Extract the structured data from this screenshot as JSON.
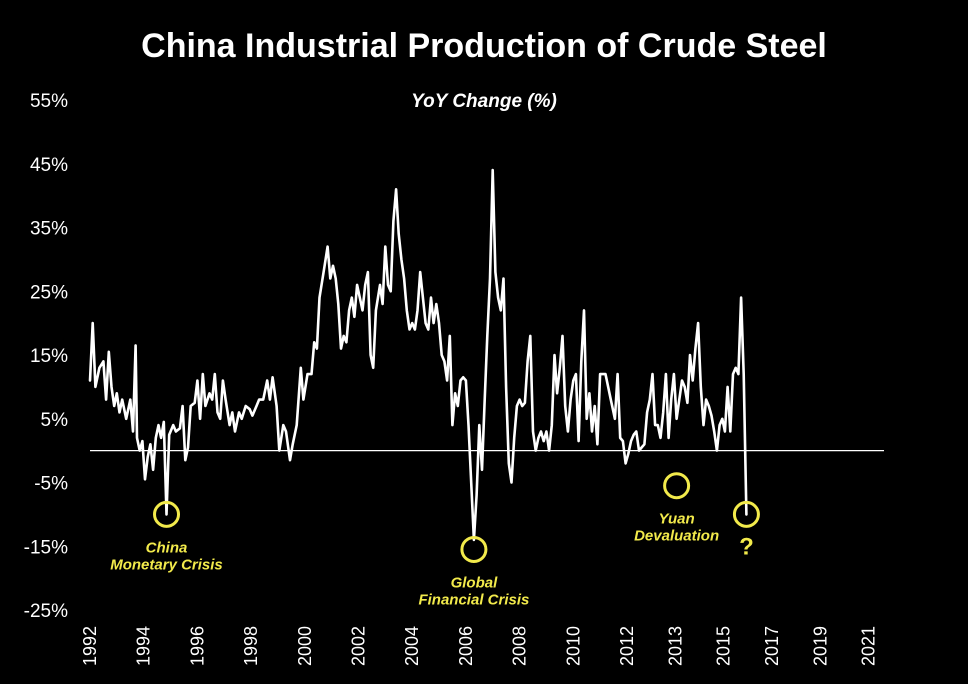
{
  "chart_data": {
    "type": "line",
    "title": "China Industrial Production of Crude Steel",
    "subtitle": "YoY Change (%)",
    "ylim": [
      -25,
      55
    ],
    "y_ticks": [
      "55%",
      "45%",
      "35%",
      "25%",
      "15%",
      "5%",
      "-5%",
      "-15%",
      "-25%"
    ],
    "y_tick_values": [
      55,
      45,
      35,
      25,
      15,
      5,
      -5,
      -15,
      -25
    ],
    "x_ticks": [
      "1992",
      "1994",
      "1996",
      "1998",
      "2000",
      "2002",
      "2004",
      "2006",
      "2008",
      "2010",
      "2012",
      "2013",
      "2015",
      "2017",
      "2019",
      "2021"
    ],
    "x_tick_values": [
      1992.0,
      1994.0,
      1996.0,
      1998.0,
      2000.0,
      2002.0,
      2004.0,
      2006.0,
      2008.0,
      2010.0,
      2012.0,
      2013.8,
      2015.6,
      2017.4,
      2019.2,
      2021.0
    ],
    "xlim": [
      1992.0,
      2021.5
    ],
    "zero_line": true,
    "grid": false,
    "line_color": "#ffffff",
    "annotation_color": "#f2ea4b",
    "series": [
      {
        "name": "",
        "points": [
          [
            1992.0,
            11
          ],
          [
            1992.1,
            20
          ],
          [
            1992.2,
            10
          ],
          [
            1992.35,
            13
          ],
          [
            1992.5,
            14
          ],
          [
            1992.6,
            8
          ],
          [
            1992.7,
            15.5
          ],
          [
            1992.8,
            10
          ],
          [
            1992.9,
            7
          ],
          [
            1993.0,
            9
          ],
          [
            1993.1,
            6
          ],
          [
            1993.2,
            8
          ],
          [
            1993.35,
            5
          ],
          [
            1993.5,
            8
          ],
          [
            1993.6,
            3
          ],
          [
            1993.7,
            16.5
          ],
          [
            1993.75,
            2
          ],
          [
            1993.85,
            0
          ],
          [
            1993.95,
            1.5
          ],
          [
            1994.05,
            -4.5
          ],
          [
            1994.15,
            -1
          ],
          [
            1994.25,
            1
          ],
          [
            1994.35,
            -3
          ],
          [
            1994.45,
            2
          ],
          [
            1994.55,
            4
          ],
          [
            1994.65,
            2
          ],
          [
            1994.75,
            4.5
          ],
          [
            1994.85,
            -10
          ],
          [
            1994.95,
            2.5
          ],
          [
            1995.1,
            4
          ],
          [
            1995.2,
            3
          ],
          [
            1995.35,
            3.5
          ],
          [
            1995.45,
            7
          ],
          [
            1995.55,
            -1.5
          ],
          [
            1995.65,
            0.5
          ],
          [
            1995.75,
            7
          ],
          [
            1995.9,
            7.5
          ],
          [
            1996.0,
            11
          ],
          [
            1996.1,
            5
          ],
          [
            1996.2,
            12
          ],
          [
            1996.3,
            7
          ],
          [
            1996.45,
            9
          ],
          [
            1996.55,
            8
          ],
          [
            1996.65,
            12
          ],
          [
            1996.75,
            6
          ],
          [
            1996.85,
            5
          ],
          [
            1996.95,
            11
          ],
          [
            1997.05,
            8
          ],
          [
            1997.2,
            4
          ],
          [
            1997.3,
            6
          ],
          [
            1997.4,
            3
          ],
          [
            1997.55,
            6
          ],
          [
            1997.65,
            5
          ],
          [
            1997.8,
            7
          ],
          [
            1997.95,
            6.5
          ],
          [
            1998.05,
            5.5
          ],
          [
            1998.2,
            7
          ],
          [
            1998.3,
            8
          ],
          [
            1998.45,
            8
          ],
          [
            1998.6,
            11
          ],
          [
            1998.7,
            8
          ],
          [
            1998.8,
            11.5
          ],
          [
            1998.95,
            7
          ],
          [
            1999.05,
            0
          ],
          [
            1999.2,
            4
          ],
          [
            1999.3,
            3
          ],
          [
            1999.45,
            -1.5
          ],
          [
            1999.55,
            1
          ],
          [
            1999.7,
            4
          ],
          [
            1999.85,
            13
          ],
          [
            1999.95,
            8
          ],
          [
            2000.1,
            12
          ],
          [
            2000.25,
            12
          ],
          [
            2000.35,
            17
          ],
          [
            2000.45,
            16
          ],
          [
            2000.55,
            24
          ],
          [
            2000.7,
            28
          ],
          [
            2000.85,
            32
          ],
          [
            2000.95,
            27
          ],
          [
            2001.05,
            29
          ],
          [
            2001.15,
            27
          ],
          [
            2001.25,
            23
          ],
          [
            2001.35,
            16
          ],
          [
            2001.45,
            18
          ],
          [
            2001.55,
            17
          ],
          [
            2001.65,
            22
          ],
          [
            2001.75,
            24
          ],
          [
            2001.85,
            21
          ],
          [
            2001.95,
            26
          ],
          [
            2002.05,
            24
          ],
          [
            2002.15,
            22
          ],
          [
            2002.25,
            26
          ],
          [
            2002.35,
            28
          ],
          [
            2002.45,
            15
          ],
          [
            2002.55,
            13
          ],
          [
            2002.65,
            22
          ],
          [
            2002.8,
            26
          ],
          [
            2002.9,
            23
          ],
          [
            2003.0,
            32
          ],
          [
            2003.1,
            26
          ],
          [
            2003.2,
            25
          ],
          [
            2003.3,
            36
          ],
          [
            2003.4,
            41
          ],
          [
            2003.5,
            34
          ],
          [
            2003.6,
            30
          ],
          [
            2003.7,
            27
          ],
          [
            2003.8,
            22
          ],
          [
            2003.9,
            19
          ],
          [
            2004.0,
            20
          ],
          [
            2004.1,
            19
          ],
          [
            2004.2,
            22
          ],
          [
            2004.3,
            28
          ],
          [
            2004.4,
            24
          ],
          [
            2004.5,
            20
          ],
          [
            2004.6,
            19
          ],
          [
            2004.7,
            24
          ],
          [
            2004.8,
            20
          ],
          [
            2004.9,
            23
          ],
          [
            2005.0,
            20
          ],
          [
            2005.1,
            15
          ],
          [
            2005.2,
            14
          ],
          [
            2005.3,
            11
          ],
          [
            2005.4,
            18
          ],
          [
            2005.5,
            4
          ],
          [
            2005.6,
            9
          ],
          [
            2005.7,
            7
          ],
          [
            2005.8,
            11
          ],
          [
            2005.9,
            11.5
          ],
          [
            2006.0,
            11
          ],
          [
            2006.1,
            4
          ],
          [
            2006.2,
            -5
          ],
          [
            2006.3,
            -14
          ],
          [
            2006.4,
            -7
          ],
          [
            2006.5,
            4
          ],
          [
            2006.6,
            -3
          ],
          [
            2006.7,
            8
          ],
          [
            2006.8,
            18
          ],
          [
            2006.9,
            27
          ],
          [
            2007.0,
            44
          ],
          [
            2007.1,
            28
          ],
          [
            2007.2,
            24
          ],
          [
            2007.3,
            22
          ],
          [
            2007.4,
            27
          ],
          [
            2007.5,
            10
          ],
          [
            2007.6,
            -2
          ],
          [
            2007.7,
            -5
          ],
          [
            2007.8,
            2
          ],
          [
            2007.9,
            7
          ],
          [
            2008.0,
            8
          ],
          [
            2008.1,
            7
          ],
          [
            2008.2,
            7.5
          ],
          [
            2008.3,
            14
          ],
          [
            2008.4,
            18
          ],
          [
            2008.5,
            3
          ],
          [
            2008.6,
            0
          ],
          [
            2008.7,
            2
          ],
          [
            2008.8,
            3
          ],
          [
            2008.9,
            1.5
          ],
          [
            2009.0,
            3
          ],
          [
            2009.1,
            0
          ],
          [
            2009.2,
            4
          ],
          [
            2009.3,
            15
          ],
          [
            2009.4,
            9
          ],
          [
            2009.5,
            13
          ],
          [
            2009.6,
            18
          ],
          [
            2009.7,
            7
          ],
          [
            2009.8,
            3
          ],
          [
            2009.9,
            8
          ],
          [
            2010.0,
            11
          ],
          [
            2010.1,
            12
          ],
          [
            2010.2,
            1.5
          ],
          [
            2010.3,
            14
          ],
          [
            2010.4,
            22
          ],
          [
            2010.5,
            5
          ],
          [
            2010.6,
            9
          ],
          [
            2010.7,
            3
          ],
          [
            2010.8,
            7
          ],
          [
            2010.9,
            1
          ],
          [
            2011.0,
            12
          ],
          [
            2011.2,
            12
          ],
          [
            2011.4,
            8
          ],
          [
            2011.55,
            5
          ],
          [
            2011.65,
            12
          ],
          [
            2011.75,
            2
          ],
          [
            2011.85,
            1.5
          ],
          [
            2011.95,
            -2
          ],
          [
            2012.05,
            -0.5
          ],
          [
            2012.15,
            1.5
          ],
          [
            2012.25,
            2.5
          ],
          [
            2012.35,
            3
          ],
          [
            2012.45,
            0
          ],
          [
            2012.55,
            0.5
          ],
          [
            2012.65,
            1
          ],
          [
            2012.75,
            6
          ],
          [
            2012.85,
            8
          ],
          [
            2012.95,
            12
          ],
          [
            2013.05,
            4
          ],
          [
            2013.15,
            4
          ],
          [
            2013.25,
            2
          ],
          [
            2013.35,
            6
          ],
          [
            2013.45,
            12
          ],
          [
            2013.55,
            2
          ],
          [
            2013.65,
            8
          ],
          [
            2013.75,
            12
          ],
          [
            2013.85,
            5
          ],
          [
            2013.95,
            8
          ],
          [
            2014.05,
            11
          ],
          [
            2014.15,
            10
          ],
          [
            2014.25,
            7.5
          ],
          [
            2014.35,
            15
          ],
          [
            2014.45,
            11
          ],
          [
            2014.55,
            16
          ],
          [
            2014.65,
            20
          ],
          [
            2014.75,
            10
          ],
          [
            2014.85,
            4
          ],
          [
            2014.95,
            8
          ],
          [
            2015.05,
            7
          ],
          [
            2015.15,
            5.5
          ],
          [
            2015.25,
            3
          ],
          [
            2015.35,
            0
          ],
          [
            2015.45,
            4
          ],
          [
            2015.55,
            5
          ],
          [
            2015.65,
            3
          ],
          [
            2015.75,
            10
          ],
          [
            2015.85,
            3
          ],
          [
            2015.95,
            12
          ],
          [
            2016.05,
            13
          ],
          [
            2016.15,
            12
          ],
          [
            2016.25,
            24
          ],
          [
            2016.35,
            12
          ],
          [
            2016.45,
            -10
          ]
        ]
      }
    ],
    "annotations": [
      {
        "label_lines": [
          "China",
          "Monetary Crisis"
        ],
        "x": 1994.85,
        "y": -10
      },
      {
        "label_lines": [
          "Global",
          "Financial Crisis"
        ],
        "x": 2006.3,
        "y": -15.5
      },
      {
        "label_lines": [
          "Yuan",
          "Devaluation"
        ],
        "x": 2013.85,
        "y": -5.5
      },
      {
        "label_lines": [
          "?"
        ],
        "x": 2016.45,
        "y": -10
      }
    ]
  }
}
